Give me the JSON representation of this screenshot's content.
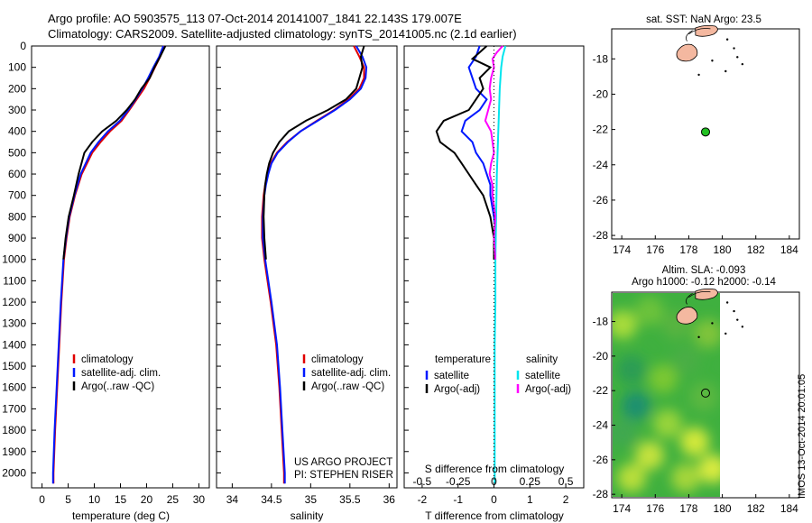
{
  "title": {
    "line1": "Argo profile: AO 5903575_113 07-Oct-2014 20141007_1841 22.143S 179.007E",
    "line2": "Climatology: CARS2009. Satellite-adjusted climatology: synTS_20141005.nc (2.1d earlier)"
  },
  "colors": {
    "climatology": "#e00000",
    "satellite": "#0018ff",
    "argo": "#000000",
    "salinity_sat": "#00e5ee",
    "salinity_argo": "#ff00ff",
    "land": "#f4b8a0",
    "float_marker": "#22c022"
  },
  "depth_axis": {
    "ticks": [
      0,
      100,
      200,
      300,
      400,
      500,
      600,
      700,
      800,
      900,
      1000,
      1100,
      1200,
      1300,
      1400,
      1500,
      1600,
      1700,
      1800,
      1900,
      2000
    ],
    "range": [
      0,
      2070
    ]
  },
  "credits": {
    "line1": "US ARGO PROJECT",
    "line2": "PI: STEPHEN RISER"
  },
  "chart_data": [
    {
      "type": "line",
      "id": "temperature",
      "xlabel": "temperature (deg C)",
      "xlim": [
        -2,
        32
      ],
      "xticks": [
        0,
        5,
        10,
        15,
        20,
        25,
        30
      ],
      "ylim": [
        0,
        2070
      ],
      "legend": [
        "climatology",
        "satellite-adj. clim.",
        "Argo(..raw -QC)"
      ],
      "series": [
        {
          "name": "climatology",
          "depth": [
            0,
            50,
            100,
            150,
            200,
            250,
            300,
            350,
            400,
            450,
            500,
            600,
            700,
            800,
            900,
            1000,
            1200,
            1400,
            1600,
            1800,
            2000,
            2050
          ],
          "values": [
            23.4,
            22.6,
            21.6,
            20.6,
            19.5,
            18.1,
            16.7,
            15.2,
            13.0,
            11.2,
            9.6,
            7.6,
            6.3,
            5.3,
            4.7,
            4.2,
            3.7,
            3.3,
            2.9,
            2.5,
            2.2,
            2.2
          ]
        },
        {
          "name": "satellite-adj. clim.",
          "depth": [
            0,
            50,
            100,
            150,
            200,
            250,
            300,
            350,
            400,
            450,
            500,
            600,
            700,
            800,
            900,
            1000,
            1200,
            1400,
            1600,
            1800,
            2000,
            2050
          ],
          "values": [
            23.2,
            22.4,
            21.3,
            20.3,
            19.2,
            17.9,
            16.5,
            14.9,
            12.6,
            10.8,
            9.3,
            7.4,
            6.2,
            5.2,
            4.6,
            4.1,
            3.6,
            3.2,
            2.8,
            2.4,
            2.1,
            2.1
          ]
        },
        {
          "name": "Argo(..raw -QC)",
          "depth": [
            0,
            50,
            100,
            150,
            200,
            250,
            300,
            350,
            400,
            450,
            500,
            600,
            700,
            800,
            900,
            1000
          ],
          "values": [
            23.6,
            22.6,
            21.5,
            20.6,
            19.0,
            17.8,
            16.2,
            14.2,
            11.5,
            9.6,
            8.1,
            7.0,
            6.1,
            5.1,
            4.5,
            4.1
          ]
        }
      ]
    },
    {
      "type": "line",
      "id": "salinity",
      "xlabel": "salinity",
      "xlim": [
        33.8,
        36.1
      ],
      "xticks": [
        34,
        34.5,
        35,
        35.5,
        36
      ],
      "ylim": [
        0,
        2070
      ],
      "legend": [
        "climatology",
        "satellite-adj. clim.",
        "Argo(..raw -QC)"
      ],
      "series": [
        {
          "name": "climatology",
          "depth": [
            0,
            50,
            100,
            150,
            200,
            250,
            300,
            350,
            400,
            450,
            500,
            550,
            600,
            650,
            700,
            800,
            900,
            1000,
            1200,
            1400,
            1600,
            1800,
            2000,
            2050
          ],
          "values": [
            35.55,
            35.62,
            35.68,
            35.68,
            35.62,
            35.48,
            35.3,
            35.08,
            34.87,
            34.7,
            34.57,
            34.49,
            34.45,
            34.42,
            34.4,
            34.38,
            34.38,
            34.41,
            34.49,
            34.56,
            34.6,
            34.63,
            34.66,
            34.66
          ]
        },
        {
          "name": "satellite-adj. clim.",
          "depth": [
            0,
            50,
            100,
            150,
            200,
            250,
            300,
            350,
            400,
            450,
            500,
            550,
            600,
            650,
            700,
            800,
            900,
            1000,
            1200,
            1400,
            1600,
            1800,
            2000,
            2050
          ],
          "values": [
            35.58,
            35.66,
            35.71,
            35.7,
            35.64,
            35.5,
            35.31,
            35.09,
            34.87,
            34.71,
            34.58,
            34.5,
            34.46,
            34.43,
            34.41,
            34.39,
            34.39,
            34.42,
            34.5,
            34.57,
            34.61,
            34.64,
            34.67,
            34.67
          ]
        },
        {
          "name": "Argo(..raw -QC)",
          "depth": [
            0,
            50,
            100,
            150,
            200,
            250,
            300,
            350,
            400,
            450,
            500,
            550,
            600,
            650,
            700,
            800,
            900,
            1000
          ],
          "values": [
            35.68,
            35.64,
            35.66,
            35.62,
            35.58,
            35.45,
            35.22,
            34.94,
            34.72,
            34.6,
            34.52,
            34.47,
            34.44,
            34.42,
            34.41,
            34.4,
            34.41,
            34.43
          ]
        }
      ]
    },
    {
      "type": "line",
      "id": "difference",
      "xlabel": "T difference from climatology",
      "xlabel_top": "S difference from climatology",
      "xlim": [
        -2.5,
        2.5
      ],
      "xticks": [
        -2,
        -1,
        0,
        1,
        2
      ],
      "sticks": [
        "-0.5",
        "-0.25",
        "0",
        "0.25",
        "0.5"
      ],
      "ylim": [
        0,
        2070
      ],
      "legend": {
        "col1_title": "temperature",
        "col2_title": "salinity",
        "items": [
          "satellite",
          "Argo(-adj)",
          "satellite",
          "Argo(-adj)"
        ]
      },
      "series": [
        {
          "name": "temperature satellite",
          "depth": [
            0,
            50,
            100,
            150,
            200,
            250,
            300,
            350,
            400,
            450,
            500,
            550,
            600,
            650,
            700,
            800,
            900,
            1000
          ],
          "values": [
            -0.4,
            -0.5,
            -0.7,
            -0.6,
            -0.5,
            -0.2,
            -0.4,
            -0.8,
            -0.9,
            -0.6,
            -0.5,
            -0.3,
            -0.2,
            -0.1,
            -0.1,
            0.0,
            0.05,
            0.0
          ]
        },
        {
          "name": "temperature Argo(-adj)",
          "depth": [
            0,
            30,
            60,
            100,
            150,
            200,
            250,
            300,
            350,
            400,
            450,
            500,
            550,
            600,
            650,
            700,
            800,
            900,
            1000
          ],
          "values": [
            -0.2,
            -0.4,
            -0.6,
            -0.1,
            -0.4,
            -0.3,
            -0.5,
            -0.7,
            -1.4,
            -1.6,
            -1.5,
            -1.1,
            -0.9,
            -0.7,
            -0.5,
            -0.3,
            -0.1,
            0.0,
            0.0
          ]
        },
        {
          "name": "salinity satellite",
          "depth": [
            0,
            50,
            100,
            200,
            400,
            600,
            800,
            1000,
            1200,
            1400,
            1600,
            1800,
            2000,
            2050
          ],
          "values": [
            0.08,
            0.06,
            0.05,
            0.04,
            0.03,
            0.02,
            0.015,
            0.01,
            0.01,
            0.005,
            0.005,
            0.005,
            0.005,
            0.005
          ]
        },
        {
          "name": "salinity Argo(-adj)",
          "depth": [
            0,
            30,
            60,
            100,
            150,
            200,
            250,
            300,
            350,
            400,
            450,
            500,
            550,
            600,
            650,
            700,
            800,
            900,
            1000
          ],
          "values": [
            0.06,
            0.02,
            -0.01,
            0.0,
            -0.02,
            -0.03,
            -0.02,
            -0.04,
            -0.06,
            -0.02,
            -0.01,
            0.0,
            -0.02,
            -0.03,
            -0.01,
            -0.01,
            0.01,
            0.0,
            0.01
          ]
        }
      ]
    }
  ],
  "maps": {
    "top": {
      "title": "sat. SST: NaN Argo: 23.5",
      "xticks": [
        "174",
        "176",
        "178",
        "180",
        "182",
        "184"
      ],
      "yticks": [
        "-18",
        "-20",
        "-22",
        "-24",
        "-26",
        "-28"
      ],
      "marker": {
        "lon": 179.0,
        "lat": -22.14
      }
    },
    "bottom": {
      "title1": "Altim. SLA: -0.093",
      "title2": "Argo h1000: -0.12 h2000: -0.14",
      "xticks": [
        "174",
        "176",
        "178",
        "180",
        "182",
        "184"
      ],
      "yticks": [
        "-18",
        "-20",
        "-22",
        "-24",
        "-26",
        "-28"
      ],
      "marker": {
        "lon": 179.0,
        "lat": -22.14
      }
    }
  },
  "stamp": "IMOS 13-Oct-2014 20:01:05"
}
